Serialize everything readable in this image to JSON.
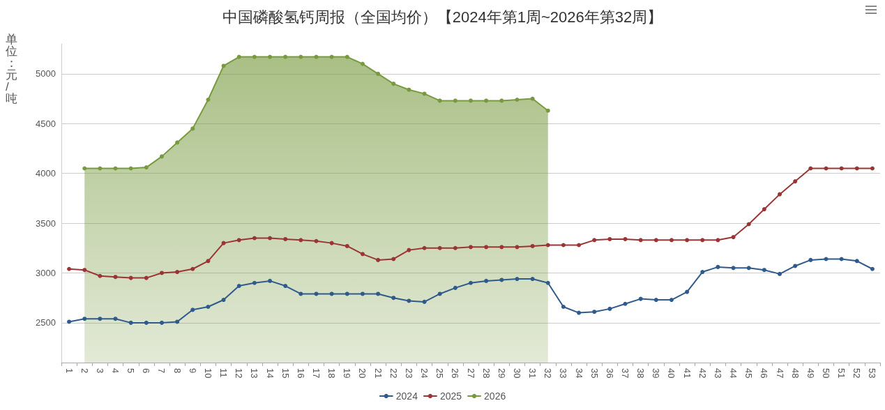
{
  "chart_data": {
    "type": "line",
    "title": "中国磷酸氢钙周报（全国均价）【2024年第1周~2026年第32周】",
    "ylabel": "单位：元/吨",
    "categories": [
      "1",
      "2",
      "3",
      "4",
      "5",
      "6",
      "7",
      "8",
      "9",
      "10",
      "11",
      "12",
      "13",
      "14",
      "15",
      "16",
      "17",
      "18",
      "19",
      "20",
      "21",
      "22",
      "23",
      "24",
      "25",
      "26",
      "27",
      "28",
      "29",
      "30",
      "31",
      "32",
      "33",
      "34",
      "35",
      "36",
      "37",
      "38",
      "39",
      "40",
      "41",
      "42",
      "43",
      "44",
      "45",
      "46",
      "47",
      "48",
      "49",
      "50",
      "51",
      "52",
      "53"
    ],
    "series": [
      {
        "name": "2024",
        "color": "#2f5a8c",
        "values": [
          2510,
          2540,
          2540,
          2540,
          2500,
          2500,
          2500,
          2510,
          2630,
          2660,
          2730,
          2870,
          2900,
          2920,
          2870,
          2790,
          2790,
          2790,
          2790,
          2790,
          2790,
          2750,
          2720,
          2710,
          2790,
          2850,
          2900,
          2920,
          2930,
          2940,
          2940,
          2900,
          2660,
          2600,
          2610,
          2640,
          2690,
          2740,
          2730,
          2730,
          2810,
          3010,
          3060,
          3050,
          3050,
          3030,
          2990,
          3070,
          3130,
          3140,
          3140,
          3120,
          3040
        ]
      },
      {
        "name": "2025",
        "color": "#9b3535",
        "values": [
          3040,
          3030,
          2970,
          2960,
          2950,
          2950,
          3000,
          3010,
          3040,
          3120,
          3300,
          3330,
          3350,
          3350,
          3340,
          3330,
          3320,
          3300,
          3270,
          3190,
          3130,
          3140,
          3230,
          3250,
          3250,
          3250,
          3260,
          3260,
          3260,
          3260,
          3270,
          3280,
          3280,
          3280,
          3330,
          3340,
          3340,
          3330,
          3330,
          3330,
          3330,
          3330,
          3330,
          3360,
          3490,
          3640,
          3790,
          3920,
          4050,
          4050,
          4050,
          4050,
          4050
        ]
      },
      {
        "name": "2026",
        "type": "area",
        "color": "#789a3f",
        "values": [
          null,
          4050,
          4050,
          4050,
          4050,
          4060,
          4170,
          4310,
          4450,
          4740,
          5080,
          5170,
          5170,
          5170,
          5170,
          5170,
          5170,
          5170,
          5170,
          5100,
          5000,
          4900,
          4840,
          4800,
          4730,
          4730,
          4730,
          4730,
          4730,
          4740,
          4750,
          4630,
          null,
          null,
          null,
          null,
          null,
          null,
          null,
          null,
          null,
          null,
          null,
          null,
          null,
          null,
          null,
          null,
          null,
          null,
          null,
          null,
          null
        ]
      }
    ],
    "ylim": [
      2100,
      5300
    ],
    "yticks": [
      2500,
      3000,
      3500,
      4000,
      4500,
      5000
    ],
    "grid": "y",
    "legend": "bottom",
    "marker": "circle",
    "line_style": "solid"
  }
}
